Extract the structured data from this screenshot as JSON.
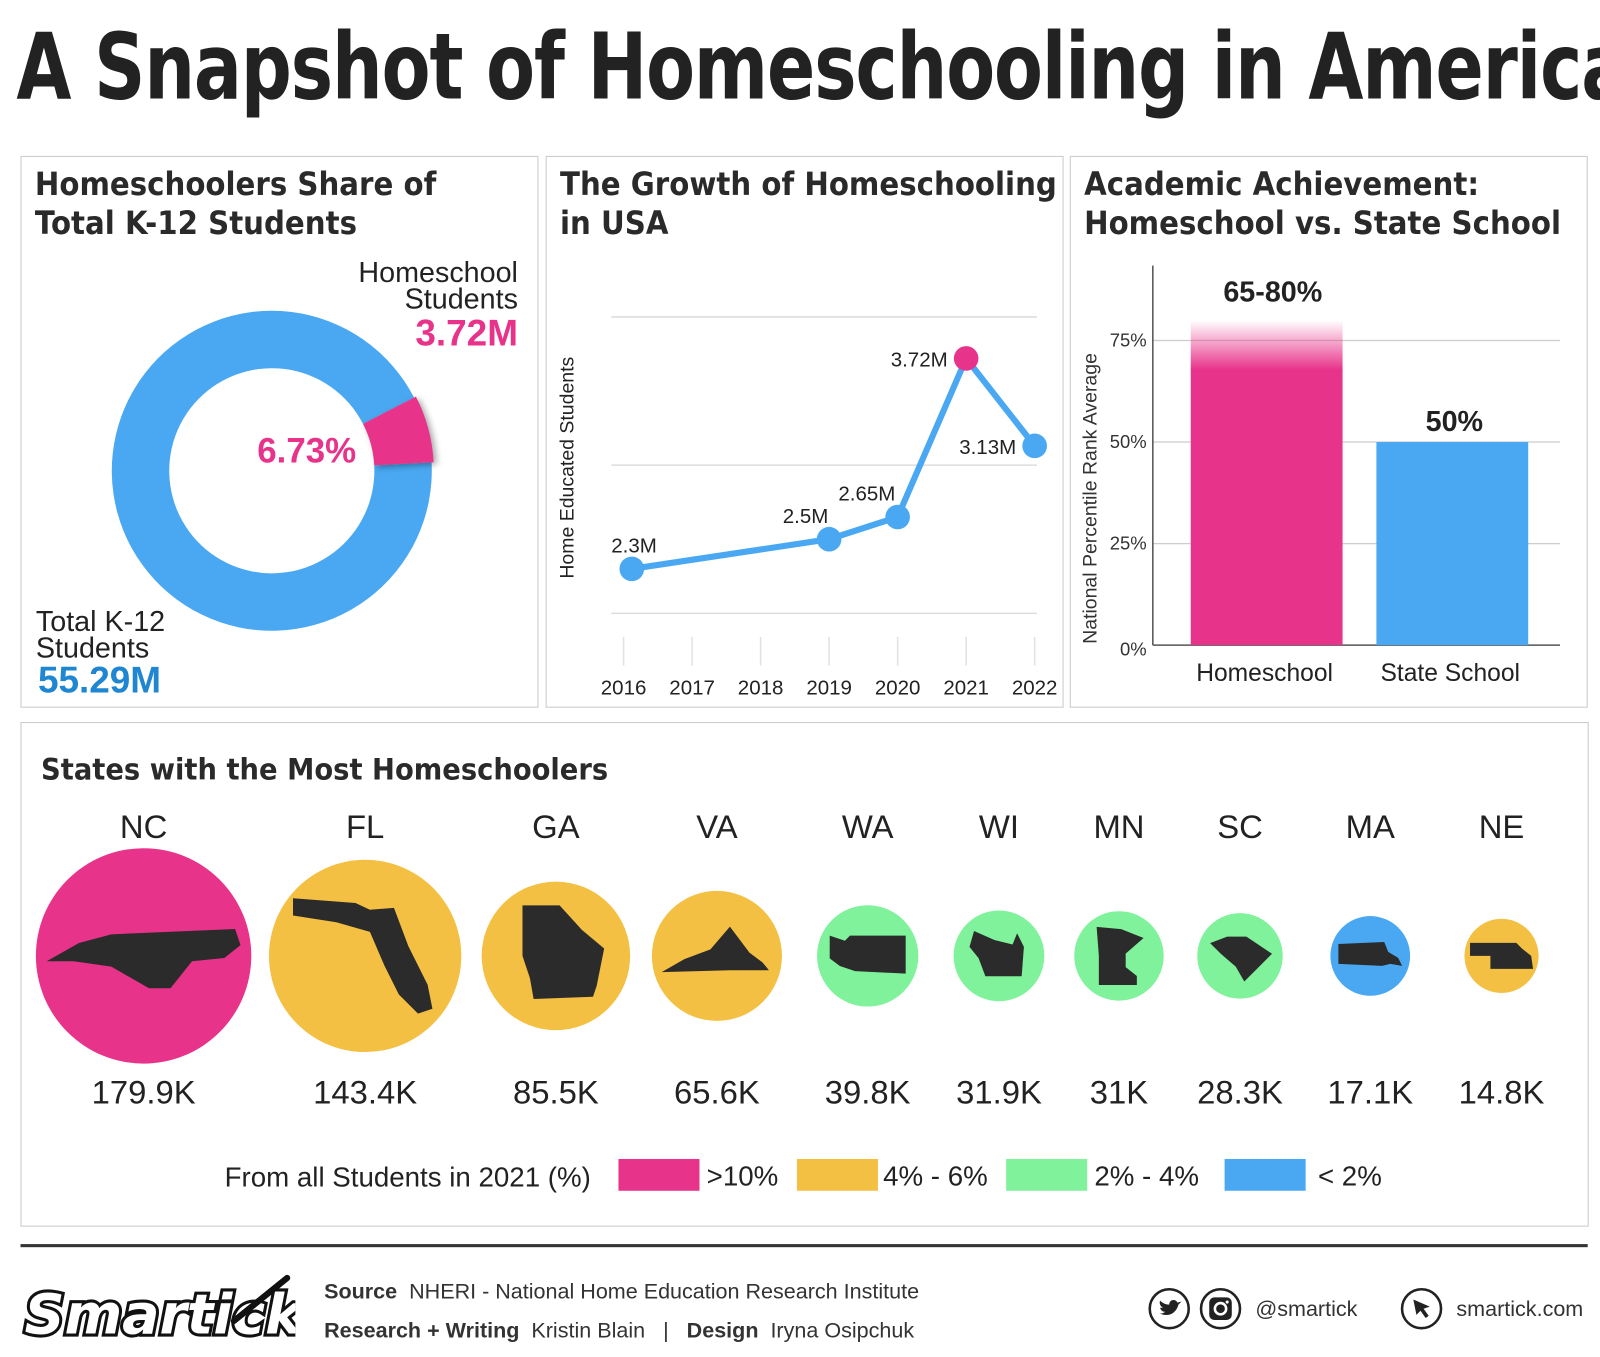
{
  "title": "A Snapshot of Homeschooling in America",
  "colors": {
    "pink": "#e8338a",
    "blue": "#4aa8f2",
    "yellow": "#f4c043",
    "green": "#7ff29b",
    "text": "#222222",
    "total_blue": "#1f86d1"
  },
  "panels": {
    "share": {
      "title_line1": "Homeschoolers Share of",
      "title_line2": "Total K-12 Students"
    },
    "growth": {
      "title_line1": "The Growth of Homeschooling",
      "title_line2": "in USA"
    },
    "achievement": {
      "title_line1": "Academic Achievement:",
      "title_line2": "Homeschool vs. State School"
    },
    "states": {
      "title": "States with the Most Homeschoolers"
    }
  },
  "chart_data": [
    {
      "type": "pie",
      "variant": "donut",
      "slices": [
        {
          "label_line1": "Homeschool",
          "label_line2": "Students",
          "value_label": "3.72M",
          "value": 3.72,
          "percent": 6.73,
          "percent_label": "6.73%",
          "color": "#e8338a"
        },
        {
          "label_line1": "Total K-12",
          "label_line2": "Students",
          "value_label": "55.29M",
          "value": 55.29,
          "color": "#4aa8f2"
        }
      ]
    },
    {
      "type": "line",
      "ylabel": "Home Educated Students",
      "x_ticks": [
        "2016",
        "2017",
        "2018",
        "2019",
        "2020",
        "2021",
        "2022"
      ],
      "ylim": [
        2,
        4
      ],
      "grid": true,
      "points": [
        {
          "x": 2016,
          "y": 2.3,
          "label": "2.3M"
        },
        {
          "x": 2019,
          "y": 2.5,
          "label": "2.5M"
        },
        {
          "x": 2020,
          "y": 2.65,
          "label": "2.65M"
        },
        {
          "x": 2021,
          "y": 3.72,
          "label": "3.72M",
          "highlight": true
        },
        {
          "x": 2022,
          "y": 3.13,
          "label": "3.13M"
        }
      ]
    },
    {
      "type": "bar",
      "ylabel": "National Percentile Rank Average",
      "ylim": [
        0,
        100
      ],
      "y_ticks": [
        "0%",
        "25%",
        "50%",
        "75%"
      ],
      "grid": true,
      "categories": [
        "Homeschool",
        "State School"
      ],
      "bars": [
        {
          "category": "Homeschool",
          "low": 65,
          "high": 80,
          "label": "65-80%",
          "color": "#e8338a"
        },
        {
          "category": "State School",
          "value": 50,
          "label": "50%",
          "color": "#4aa8f2"
        }
      ]
    },
    {
      "type": "bubble",
      "states": [
        {
          "code": "NC",
          "value": 179.9,
          "label": "179.9K",
          "tier": "pink"
        },
        {
          "code": "FL",
          "value": 143.4,
          "label": "143.4K",
          "tier": "yellow"
        },
        {
          "code": "GA",
          "value": 85.5,
          "label": "85.5K",
          "tier": "yellow"
        },
        {
          "code": "VA",
          "value": 65.6,
          "label": "65.6K",
          "tier": "yellow"
        },
        {
          "code": "WA",
          "value": 39.8,
          "label": "39.8K",
          "tier": "green"
        },
        {
          "code": "WI",
          "value": 31.9,
          "label": "31.9K",
          "tier": "green"
        },
        {
          "code": "MN",
          "value": 31,
          "label": "31K",
          "tier": "green"
        },
        {
          "code": "SC",
          "value": 28.3,
          "label": "28.3K",
          "tier": "green"
        },
        {
          "code": "MA",
          "value": 17.1,
          "label": "17.1K",
          "tier": "blue"
        },
        {
          "code": "NE",
          "value": 14.8,
          "label": "14.8K",
          "tier": "yellow"
        }
      ],
      "legend": {
        "title": "From all Students in 2021 (%)",
        "items": [
          {
            "tier": "pink",
            "label": ">10%"
          },
          {
            "tier": "yellow",
            "label": "4% - 6%"
          },
          {
            "tier": "green",
            "label": "2% - 4%"
          },
          {
            "tier": "blue",
            "label": "< 2%"
          }
        ]
      }
    }
  ],
  "footer": {
    "logo": "Smartick",
    "source_label": "Source",
    "source": "NHERI - National Home Education Research Institute",
    "research_label": "Research + Writing",
    "research": "Kristin Blain",
    "separator": "|",
    "design_label": "Design",
    "design": "Iryna Osipchuk",
    "social_handle": "@smartick",
    "website": "smartick.com",
    "icons": [
      "twitter-icon",
      "instagram-icon",
      "cursor-icon"
    ]
  }
}
